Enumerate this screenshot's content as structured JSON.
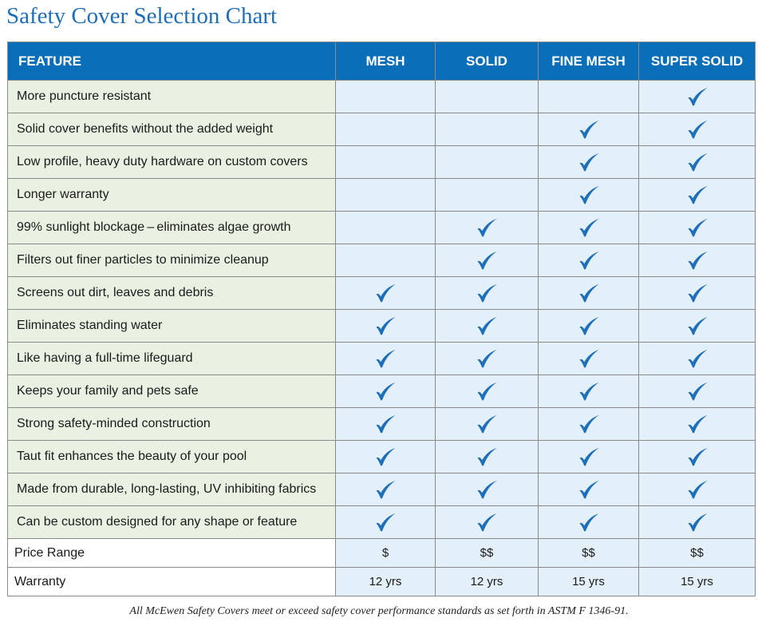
{
  "title": "Safety Cover Selection Chart",
  "columns": [
    "FEATURE",
    "MESH",
    "SOLID",
    "FINE MESH",
    "SUPER SOLID"
  ],
  "check_color": "#1f6fb8",
  "check_icon": "checkmark-icon",
  "features": [
    {
      "label": "More puncture resistant",
      "checks": [
        false,
        false,
        false,
        true
      ]
    },
    {
      "label": "Solid cover benefits without the added weight",
      "checks": [
        false,
        false,
        true,
        true
      ]
    },
    {
      "label": "Low profile, heavy duty hardware on custom covers",
      "checks": [
        false,
        false,
        true,
        true
      ]
    },
    {
      "label": "Longer warranty",
      "checks": [
        false,
        false,
        true,
        true
      ]
    },
    {
      "label": "99% sunlight blockage – eliminates algae growth",
      "checks": [
        false,
        true,
        true,
        true
      ]
    },
    {
      "label": "Filters out finer particles to minimize cleanup",
      "checks": [
        false,
        true,
        true,
        true
      ]
    },
    {
      "label": "Screens out dirt, leaves and debris",
      "checks": [
        true,
        true,
        true,
        true
      ]
    },
    {
      "label": "Eliminates standing water",
      "checks": [
        true,
        true,
        true,
        true
      ]
    },
    {
      "label": "Like having a full-time lifeguard",
      "checks": [
        true,
        true,
        true,
        true
      ]
    },
    {
      "label": "Keeps your family and pets safe",
      "checks": [
        true,
        true,
        true,
        true
      ]
    },
    {
      "label": "Strong safety-minded construction",
      "checks": [
        true,
        true,
        true,
        true
      ]
    },
    {
      "label": "Taut fit enhances the beauty of your pool",
      "checks": [
        true,
        true,
        true,
        true
      ]
    },
    {
      "label": "Made from durable, long-lasting, UV inhibiting fabrics",
      "checks": [
        true,
        true,
        true,
        true
      ]
    },
    {
      "label": "Can be custom designed for any shape or feature",
      "checks": [
        true,
        true,
        true,
        true
      ]
    }
  ],
  "price_range": {
    "label": "Price Range",
    "values": [
      "$",
      "$$",
      "$$",
      "$$"
    ]
  },
  "warranty": {
    "label": "Warranty",
    "values": [
      "12 yrs",
      "12 yrs",
      "15 yrs",
      "15 yrs"
    ]
  },
  "footnote": "All McEwen Safety Covers meet or exceed safety cover performance standards as set forth in ASTM F 1346-91."
}
